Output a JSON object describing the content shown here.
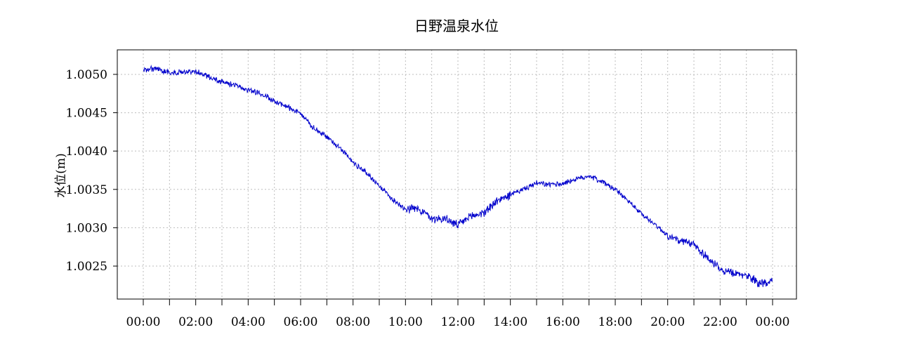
{
  "chart_data": {
    "type": "line",
    "title": "日野温泉水位",
    "xlabel": "",
    "ylabel": "水位(m)",
    "x_tick_labels": [
      "00:00",
      "02:00",
      "04:00",
      "06:00",
      "08:00",
      "10:00",
      "12:00",
      "14:00",
      "16:00",
      "18:00",
      "20:00",
      "22:00",
      "00:00"
    ],
    "x_range_hours": [
      0,
      24
    ],
    "y_tick_labels": [
      "1.0025",
      "1.0030",
      "1.0035",
      "1.0040",
      "1.0045",
      "1.0050"
    ],
    "y_ticks": [
      1.0025,
      1.003,
      1.0035,
      1.004,
      1.0045,
      1.005
    ],
    "ylim": [
      1.00207,
      1.00532
    ],
    "grid": true,
    "legend": "none",
    "series": [
      {
        "color": "#0000cc",
        "x_hours": [
          0,
          0.5,
          1,
          1.5,
          2,
          2.5,
          3,
          3.5,
          4,
          4.5,
          5,
          5.5,
          6,
          6.5,
          7,
          7.5,
          8,
          8.5,
          9,
          9.5,
          10,
          10.5,
          11,
          11.5,
          12,
          12.5,
          13,
          13.5,
          14,
          14.5,
          15,
          15.5,
          16,
          16.5,
          17,
          17.5,
          18,
          18.5,
          19,
          19.5,
          20,
          20.5,
          21,
          21.5,
          22,
          22.5,
          23,
          23.5,
          24
        ],
        "values": [
          1.00505,
          1.00508,
          1.00502,
          1.00503,
          1.00504,
          1.00497,
          1.0049,
          1.00486,
          1.0048,
          1.00475,
          1.00465,
          1.00458,
          1.00448,
          1.0043,
          1.00418,
          1.00405,
          1.00385,
          1.00372,
          1.00355,
          1.00337,
          1.00325,
          1.00325,
          1.00312,
          1.00312,
          1.00303,
          1.00315,
          1.0032,
          1.00335,
          1.00343,
          1.0035,
          1.00358,
          1.00356,
          1.00358,
          1.00363,
          1.00368,
          1.0036,
          1.0035,
          1.00335,
          1.00318,
          1.00305,
          1.0029,
          1.00282,
          1.00278,
          1.00262,
          1.00245,
          1.0024,
          1.00238,
          1.00228,
          1.00229
        ]
      }
    ]
  }
}
